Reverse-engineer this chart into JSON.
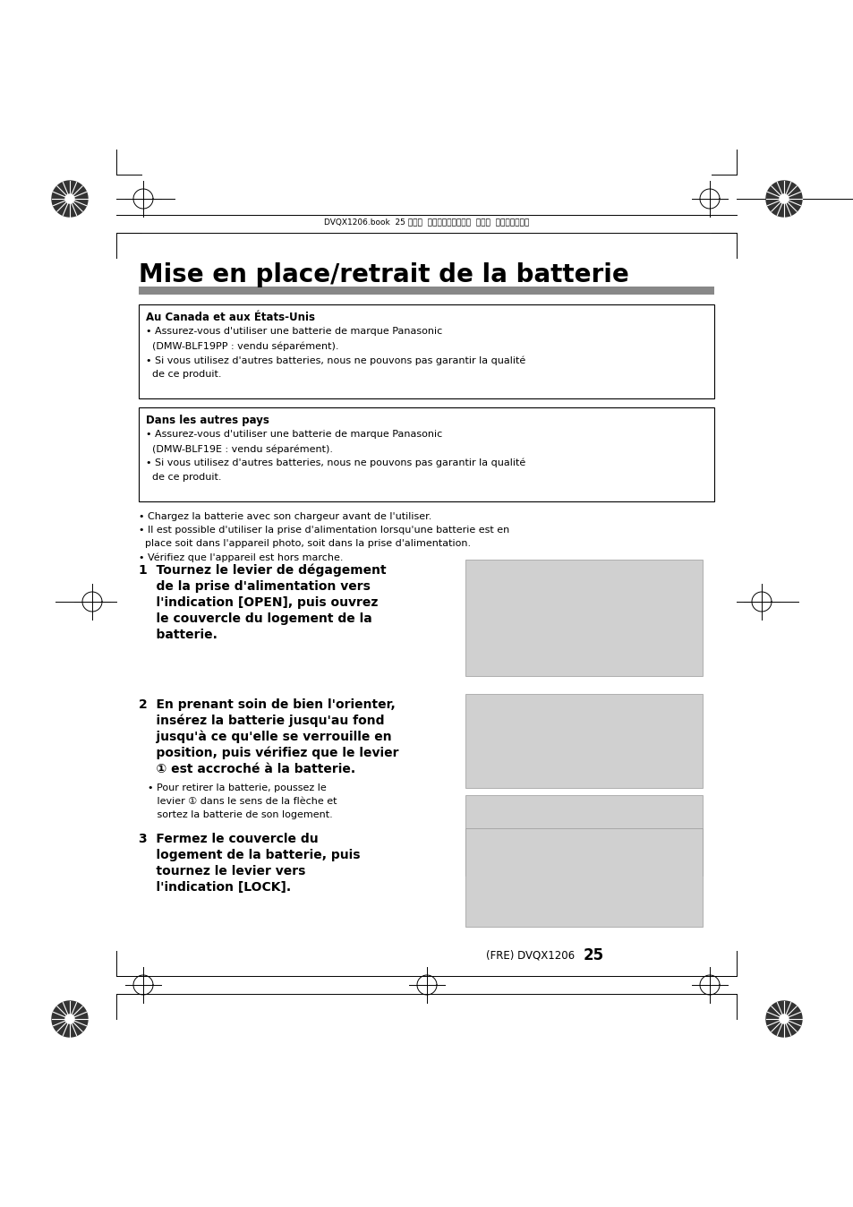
{
  "bg_color": "#ffffff",
  "page_width": 9.54,
  "page_height": 13.48,
  "title": "Mise en place/retrait de la batterie",
  "header_text": "DVQX1206.book  25 ページ  ２０１７年２月６日  月曜日  午後５時２９分",
  "footer_text": "(FRE) DVQX1206",
  "footer_page": "25",
  "box1_title": "Au Canada et aux États-Unis",
  "box1_lines": [
    "• Assurez-vous d'utiliser une batterie de marque Panasonic",
    "  (DMW-BLF19PP : vendu séparément).",
    "• Si vous utilisez d'autres batteries, nous ne pouvons pas garantir la qualité",
    "  de ce produit."
  ],
  "box2_title": "Dans les autres pays",
  "box2_lines": [
    "• Assurez-vous d'utiliser une batterie de marque Panasonic",
    "  (DMW-BLF19E : vendu séparément).",
    "• Si vous utilisez d'autres batteries, nous ne pouvons pas garantir la qualité",
    "  de ce produit."
  ],
  "bullet_lines": [
    "• Chargez la batterie avec son chargeur avant de l'utiliser.",
    "• Il est possible d'utiliser la prise d'alimentation lorsqu'une batterie est en",
    "  place soit dans l'appareil photo, soit dans la prise d'alimentation.",
    "• Vérifiez que l'appareil est hors marche."
  ],
  "step1_lines": [
    "1  Tournez le levier de dégagement",
    "    de la prise d'alimentation vers",
    "    l'indication [OPEN], puis ouvrez",
    "    le couvercle du logement de la",
    "    batterie."
  ],
  "step2_lines": [
    "2  En prenant soin de bien l'orienter,",
    "    insérez la batterie jusqu'au fond",
    "    jusqu'à ce qu'elle se verrouille en",
    "    position, puis vérifiez que le levier",
    "    ① est accroché à la batterie."
  ],
  "step2_sub": [
    "• Pour retirer la batterie, poussez le",
    "   levier ① dans le sens de la flèche et",
    "   sortez la batterie de son logement."
  ],
  "step3_lines": [
    "3  Fermez le couvercle du",
    "    logement de la batterie, puis",
    "    tournez le levier vers",
    "    l'indication [LOCK]."
  ]
}
